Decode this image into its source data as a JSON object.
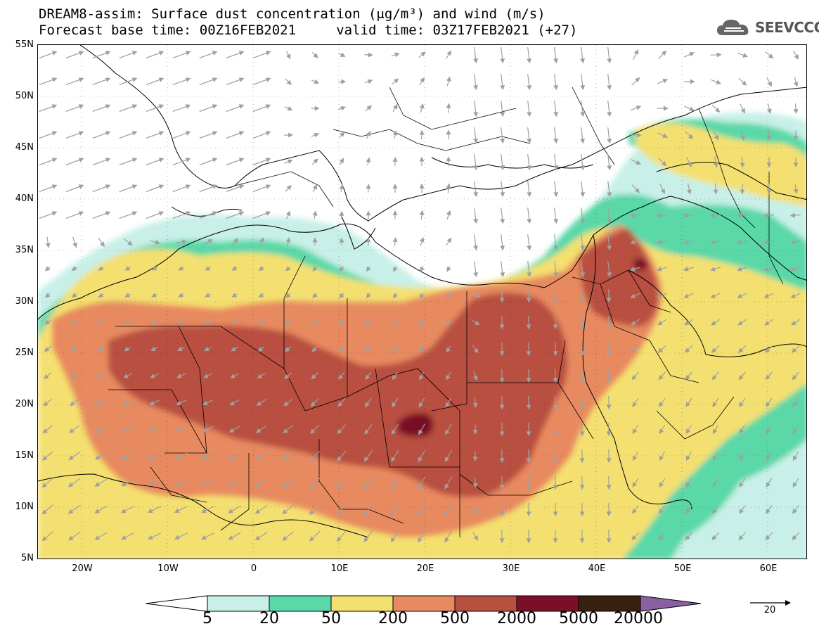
{
  "title": {
    "line1": "DREAM8-assim: Surface dust concentration (μg/m³) and wind (m/s)",
    "line2": "Forecast base time: 00Z16FEB2021     valid time: 03Z17FEB2021 (+27)"
  },
  "logo": {
    "text": "SEEVCCC",
    "icon": "cloud-logo-icon"
  },
  "map": {
    "lat_labels": [
      "55N",
      "50N",
      "45N",
      "40N",
      "35N",
      "30N",
      "25N",
      "20N",
      "15N",
      "10N",
      "5N"
    ],
    "lon_labels": [
      "20W",
      "10W",
      "0",
      "10E",
      "20E",
      "30E",
      "40E",
      "50E",
      "60E"
    ],
    "lat_range": [
      5,
      55
    ],
    "lon_range": [
      -25,
      65
    ]
  },
  "colorbar": {
    "labels": [
      "5",
      "20",
      "50",
      "200",
      "500",
      "2000",
      "5000",
      "20000"
    ],
    "colors": [
      "#ffffff",
      "#c8f0e8",
      "#5ad8a8",
      "#f4e070",
      "#e88a60",
      "#b85040",
      "#7a1028",
      "#3a2010",
      "#8a60a0"
    ]
  },
  "wind_reference": {
    "value": "20",
    "unit": "m/s"
  },
  "palette": {
    "band_5_20": "#c8f0e8",
    "band_20_50": "#5ad8a8",
    "band_50_200": "#f4e070",
    "band_200_500": "#e88a60",
    "band_500_2000": "#b85040",
    "band_2000_5000": "#7a1028",
    "wind_arrow": "#a0a0a0"
  }
}
